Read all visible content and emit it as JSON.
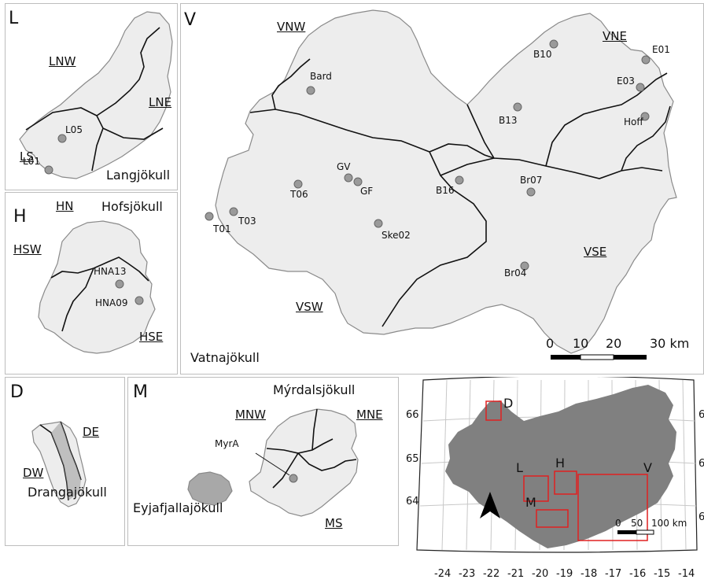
{
  "colors": {
    "ice_fill": "#ededed",
    "ice_stroke": "#8a8a8a",
    "divide": "#111111",
    "iceland_land": "#808080",
    "box": "#e02020",
    "site_marker": "#9a9a9a"
  },
  "panels": {
    "L": {
      "letter": "L",
      "glacier_name": "Langjökull",
      "regions": [
        "LNW",
        "LNE",
        "LS"
      ],
      "sites": [
        "L05",
        "L01"
      ]
    },
    "H": {
      "letter": "H",
      "glacier_name": "Hofsjökull",
      "regions": [
        "HN",
        "HSW",
        "HSE"
      ],
      "sites": [
        "HNA13",
        "HNA09"
      ]
    },
    "V": {
      "letter": "V",
      "glacier_name": "Vatnajökull",
      "regions": [
        "VNW",
        "VNE",
        "VSE",
        "VSW"
      ],
      "sites": [
        "Bard",
        "B10",
        "E01",
        "E03",
        "B13",
        "Hoff",
        "T06",
        "GV",
        "GF",
        "B16",
        "Br07",
        "T01",
        "T03",
        "Ske02",
        "Br04"
      ],
      "scalebar": {
        "ticks": [
          "0",
          "10",
          "20",
          "30 km"
        ]
      }
    },
    "D": {
      "letter": "D",
      "glacier_name": "Drangajökull",
      "regions": [
        "DE",
        "DW"
      ]
    },
    "M": {
      "letter": "M",
      "glacier_names": [
        "Mýrdalsjökull",
        "Eyjafjallajökull"
      ],
      "regions": [
        "MNW",
        "MNE",
        "MS"
      ],
      "sites": [
        "MyrA"
      ]
    },
    "overview": {
      "lat_labels": [
        "66",
        "65",
        "64"
      ],
      "lat_labels_right": [
        "6",
        "6",
        "6"
      ],
      "lon_labels": [
        "-24",
        "-23",
        "-22",
        "-21",
        "-20",
        "-19",
        "-18",
        "-17",
        "-16",
        "-15",
        "-14"
      ],
      "box_labels": [
        "D",
        "L",
        "H",
        "V",
        "M"
      ],
      "scalebar": {
        "ticks": [
          "0",
          "50",
          "100 km"
        ]
      }
    }
  }
}
